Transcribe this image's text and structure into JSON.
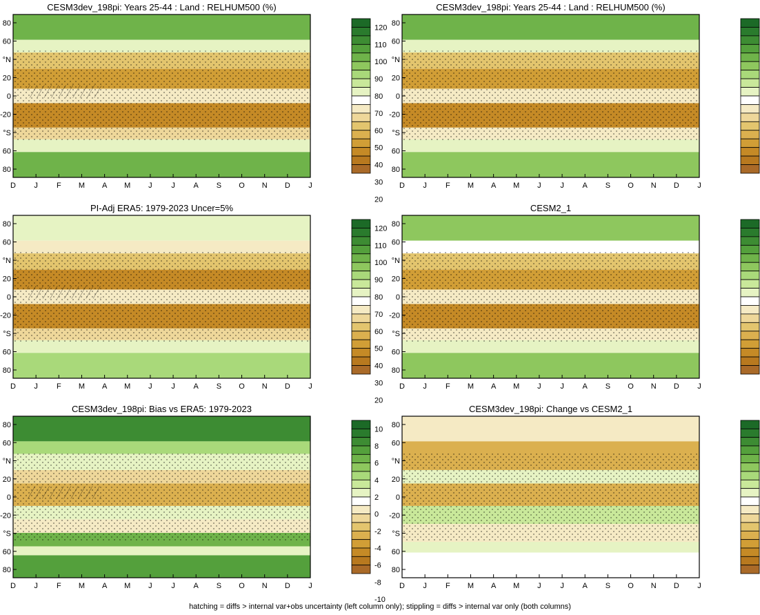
{
  "figure": {
    "caption": "hatching = diffs > internal var+obs uncertainty (left column only); stippling = diffs > internal var only (both columns)"
  },
  "colorbar_abs": {
    "colors": [
      "#aa6a28",
      "#b8791f",
      "#c58a26",
      "#d19e36",
      "#dbb04f",
      "#e3c56e",
      "#eed79a",
      "#f5eac4",
      "#ffffff",
      "#e6f3c3",
      "#c9e89a",
      "#a9d97a",
      "#8ec75e",
      "#6fb34a",
      "#54a03c",
      "#3d8c33",
      "#2a7b2d",
      "#1c6a27"
    ],
    "labels": [
      "20",
      "30",
      "40",
      "50",
      "60",
      "70",
      "80",
      "90",
      "100",
      "110",
      "120"
    ]
  },
  "colorbar_diff": {
    "colors": [
      "#aa6a28",
      "#b8791f",
      "#c58a26",
      "#d19e36",
      "#dbb04f",
      "#e3c56e",
      "#eed79a",
      "#f5eac4",
      "#ffffff",
      "#e6f3c3",
      "#c9e89a",
      "#a9d97a",
      "#8ec75e",
      "#6fb34a",
      "#54a03c",
      "#3d8c33",
      "#2a7b2d",
      "#1c6a27"
    ],
    "labels": [
      "-10",
      "-8",
      "-6",
      "-4",
      "-2",
      "0",
      "2",
      "4",
      "6",
      "8",
      "10"
    ]
  },
  "chart_data": [
    {
      "type": "heatmap",
      "title": "CESM3dev_198pi: Years 25-44 : Land : RELHUM500 (%)",
      "x_tick_labels": [
        "D",
        "J",
        "F",
        "M",
        "A",
        "M",
        "J",
        "J",
        "A",
        "S",
        "O",
        "N",
        "D",
        "J"
      ],
      "y_tick_labels": [
        "80",
        "60",
        "°N",
        "20",
        "0",
        "-20",
        "°S",
        "60",
        "80"
      ],
      "ylim": [
        -90,
        90
      ],
      "colorbar": "abs",
      "overlay": [
        "hatching",
        "stippling"
      ],
      "bands": [
        {
          "lat": [
            62,
            90
          ],
          "value": 100
        },
        {
          "lat": [
            48,
            62
          ],
          "value": 70
        },
        {
          "lat": [
            30,
            48
          ],
          "value": 50
        },
        {
          "lat": [
            8,
            30
          ],
          "value": 35
        },
        {
          "lat": [
            -8,
            8
          ],
          "value": 60
        },
        {
          "lat": [
            -35,
            -8
          ],
          "value": 30
        },
        {
          "lat": [
            -48,
            -35
          ],
          "value": 55
        },
        {
          "lat": [
            -62,
            -48
          ],
          "value": 70
        },
        {
          "lat": [
            -90,
            -62
          ],
          "value": 100
        }
      ]
    },
    {
      "type": "heatmap",
      "title": "CESM3dev_198pi: Years 25-44 : Land : RELHUM500 (%)",
      "x_tick_labels": [
        "D",
        "J",
        "F",
        "M",
        "A",
        "M",
        "J",
        "J",
        "A",
        "S",
        "O",
        "N",
        "D",
        "J"
      ],
      "y_tick_labels": [
        "80",
        "60",
        "°N",
        "20",
        "0",
        "-20",
        "°S",
        "60",
        "80"
      ],
      "ylim": [
        -90,
        90
      ],
      "colorbar": "abs",
      "overlay": [
        "stippling"
      ],
      "bands": [
        {
          "lat": [
            62,
            90
          ],
          "value": 95
        },
        {
          "lat": [
            48,
            62
          ],
          "value": 70
        },
        {
          "lat": [
            30,
            48
          ],
          "value": 50
        },
        {
          "lat": [
            8,
            30
          ],
          "value": 35
        },
        {
          "lat": [
            -8,
            8
          ],
          "value": 62
        },
        {
          "lat": [
            -35,
            -8
          ],
          "value": 32
        },
        {
          "lat": [
            -48,
            -35
          ],
          "value": 60
        },
        {
          "lat": [
            -62,
            -48
          ],
          "value": 72
        },
        {
          "lat": [
            -90,
            -62
          ],
          "value": 92
        }
      ]
    },
    {
      "type": "heatmap",
      "title": "PI-Adj ERA5: 1979-2023 Uncer=5%",
      "x_tick_labels": [
        "D",
        "J",
        "F",
        "M",
        "A",
        "M",
        "J",
        "J",
        "A",
        "S",
        "O",
        "N",
        "D",
        "J"
      ],
      "y_tick_labels": [
        "80",
        "60",
        "°N",
        "20",
        "0",
        "-20",
        "°S",
        "60",
        "80"
      ],
      "ylim": [
        -90,
        90
      ],
      "colorbar": "abs",
      "overlay": [
        "hatching",
        "stippling"
      ],
      "bands": [
        {
          "lat": [
            62,
            90
          ],
          "value": 70
        },
        {
          "lat": [
            48,
            62
          ],
          "value": 62
        },
        {
          "lat": [
            30,
            48
          ],
          "value": 48
        },
        {
          "lat": [
            8,
            30
          ],
          "value": 33
        },
        {
          "lat": [
            -8,
            8
          ],
          "value": 62
        },
        {
          "lat": [
            -35,
            -8
          ],
          "value": 30
        },
        {
          "lat": [
            -48,
            -35
          ],
          "value": 55
        },
        {
          "lat": [
            -62,
            -48
          ],
          "value": 70
        },
        {
          "lat": [
            -90,
            -62
          ],
          "value": 88
        }
      ]
    },
    {
      "type": "heatmap",
      "title": "CESM2_1",
      "x_tick_labels": [
        "D",
        "J",
        "F",
        "M",
        "A",
        "M",
        "J",
        "J",
        "A",
        "S",
        "O",
        "N",
        "D",
        "J"
      ],
      "y_tick_labels": [
        "80",
        "60",
        "°N",
        "20",
        "0",
        "-20",
        "°S",
        "60",
        "80"
      ],
      "ylim": [
        -90,
        90
      ],
      "colorbar": "abs",
      "overlay": [
        "stippling"
      ],
      "bands": [
        {
          "lat": [
            62,
            90
          ],
          "value": 90
        },
        {
          "lat": [
            48,
            62
          ],
          "value": 68
        },
        {
          "lat": [
            30,
            48
          ],
          "value": 48
        },
        {
          "lat": [
            8,
            30
          ],
          "value": 35
        },
        {
          "lat": [
            -8,
            8
          ],
          "value": 62
        },
        {
          "lat": [
            -35,
            -8
          ],
          "value": 30
        },
        {
          "lat": [
            -48,
            -35
          ],
          "value": 60
        },
        {
          "lat": [
            -62,
            -48
          ],
          "value": 72
        },
        {
          "lat": [
            -90,
            -62
          ],
          "value": 92
        }
      ]
    },
    {
      "type": "heatmap",
      "title": "CESM3dev_198pi: Bias vs ERA5: 1979-2023",
      "x_tick_labels": [
        "D",
        "J",
        "F",
        "M",
        "A",
        "M",
        "J",
        "J",
        "A",
        "S",
        "O",
        "N",
        "D",
        "J"
      ],
      "y_tick_labels": [
        "80",
        "60",
        "°N",
        "20",
        "0",
        "-20",
        "°S",
        "60",
        "80"
      ],
      "ylim": [
        -90,
        90
      ],
      "colorbar": "diff",
      "overlay": [
        "hatching",
        "stippling"
      ],
      "bands": [
        {
          "lat": [
            62,
            90
          ],
          "value": 8
        },
        {
          "lat": [
            48,
            62
          ],
          "value": 3
        },
        {
          "lat": [
            30,
            48
          ],
          "value": 1
        },
        {
          "lat": [
            15,
            30
          ],
          "value": -3
        },
        {
          "lat": [
            -10,
            15
          ],
          "value": -5
        },
        {
          "lat": [
            -25,
            -10
          ],
          "value": 1
        },
        {
          "lat": [
            -40,
            -25
          ],
          "value": -2
        },
        {
          "lat": [
            -55,
            -40
          ],
          "value": 5
        },
        {
          "lat": [
            -65,
            -55
          ],
          "value": 0
        },
        {
          "lat": [
            -90,
            -65
          ],
          "value": 7
        }
      ]
    },
    {
      "type": "heatmap",
      "title": "CESM3dev_198pi: Change vs CESM2_1",
      "x_tick_labels": [
        "D",
        "J",
        "F",
        "M",
        "A",
        "M",
        "J",
        "J",
        "A",
        "S",
        "O",
        "N",
        "D",
        "J"
      ],
      "y_tick_labels": [
        "80",
        "60",
        "°N",
        "20",
        "0",
        "-20",
        "°S",
        "60",
        "80"
      ],
      "ylim": [
        -90,
        90
      ],
      "colorbar": "diff",
      "overlay": [
        "stippling"
      ],
      "bands": [
        {
          "lat": [
            62,
            90
          ],
          "value": -2
        },
        {
          "lat": [
            30,
            62
          ],
          "value": -5
        },
        {
          "lat": [
            15,
            30
          ],
          "value": 1
        },
        {
          "lat": [
            -10,
            15
          ],
          "value": -5
        },
        {
          "lat": [
            -30,
            -10
          ],
          "value": 2
        },
        {
          "lat": [
            -50,
            -30
          ],
          "value": -2
        },
        {
          "lat": [
            -62,
            -50
          ],
          "value": 0
        },
        {
          "lat": [
            -90,
            -62
          ],
          "value": -1
        }
      ]
    }
  ]
}
